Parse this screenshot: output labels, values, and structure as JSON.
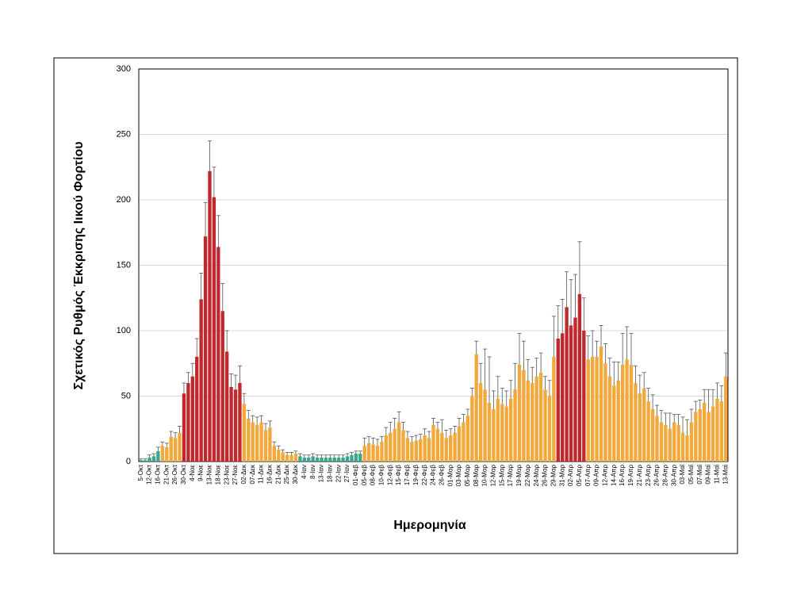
{
  "chart_data": {
    "type": "bar",
    "y_label": "Σχετικός Ρυθμός Έκκρισης Ιικού Φορτίου",
    "x_label": "Ημερομηνία",
    "ylim": [
      0,
      300
    ],
    "yticks": [
      0,
      50,
      100,
      150,
      200,
      250,
      300
    ],
    "grid": true,
    "categories": [
      "5-Οκτ",
      null,
      "12-Οκτ",
      null,
      "16-Οκτ",
      null,
      "21-Οκτ",
      null,
      "26-Οκτ",
      null,
      "30-Οκτ",
      null,
      "4-Νοε",
      null,
      "9-Νοε",
      null,
      "13-Νοε",
      null,
      "18-Νοε",
      null,
      "23-Νοε",
      null,
      "27-Νοε",
      null,
      "02-Δεκ",
      null,
      "07-Δεκ",
      null,
      "11-Δεκ",
      null,
      "16-Δεκ",
      null,
      "21-Δεκ",
      null,
      "25-Δεκ",
      null,
      "30-Δεκ",
      null,
      "4-Ιαν",
      null,
      "8-Ιαν",
      null,
      "13-Ιαν",
      null,
      "18-Ιαν",
      null,
      "22-Ιαν",
      null,
      "27-Ιαν",
      null,
      "01-Φεβ",
      null,
      "05-Φεβ",
      null,
      "08-Φεβ",
      null,
      "10-Φεβ",
      null,
      "12-Φεβ",
      null,
      "15-Φεβ",
      null,
      "17-Φεβ",
      null,
      "19-Φεβ",
      null,
      "22-Φεβ",
      null,
      "24-Φεβ",
      null,
      "26-Φεβ",
      null,
      "01-Μαρ",
      null,
      "03-Μαρ",
      null,
      "05-Μαρ",
      null,
      "08-Μαρ",
      null,
      "10-Μαρ",
      null,
      "12-Μαρ",
      null,
      "15-Μαρ",
      null,
      "17-Μαρ",
      null,
      "19-Μαρ",
      null,
      "22-Μαρ",
      null,
      "24-Μαρ",
      null,
      "26-Μαρ",
      null,
      "29-Μαρ",
      null,
      "31-Μαρ",
      null,
      "02-Απρ",
      null,
      "05-Απρ",
      null,
      "07-Απρ",
      null,
      "09-Απρ",
      null,
      "12-Απρ",
      null,
      "14-Απρ",
      null,
      "16-Απρ",
      null,
      "19-Απρ",
      null,
      "21-Απρ",
      null,
      "23-Απρ",
      null,
      "26-Απρ",
      null,
      "28-Απρ",
      null,
      "30-Απρ",
      null,
      "03-Μαϊ",
      null,
      "05-Μαϊ",
      null,
      "07-Μαϊ",
      null,
      "09-Μαϊ",
      null,
      "11-Μαϊ",
      null,
      "13-Μαϊ"
    ],
    "values": [
      1,
      1,
      3,
      4,
      8,
      12,
      11,
      19,
      18,
      22,
      52,
      60,
      65,
      80,
      124,
      172,
      222,
      202,
      164,
      115,
      84,
      57,
      55,
      60,
      44,
      33,
      30,
      28,
      30,
      24,
      26,
      12,
      9,
      7,
      5,
      5,
      6,
      4,
      3,
      3,
      4,
      3,
      3,
      3,
      3,
      3,
      3,
      3,
      4,
      5,
      6,
      6,
      12,
      14,
      13,
      12,
      15,
      20,
      22,
      25,
      30,
      24,
      18,
      15,
      16,
      17,
      20,
      18,
      28,
      25,
      22,
      18,
      20,
      22,
      27,
      30,
      35,
      50,
      82,
      60,
      55,
      45,
      40,
      48,
      44,
      42,
      48,
      55,
      74,
      70,
      62,
      60,
      65,
      68,
      55,
      50,
      80,
      94,
      98,
      118,
      104,
      110,
      128,
      100,
      78,
      80,
      80,
      88,
      75,
      65,
      58,
      62,
      74,
      78,
      74,
      60,
      52,
      56,
      46,
      40,
      35,
      30,
      28,
      25,
      30,
      28,
      22,
      20,
      30,
      38,
      40,
      45,
      38,
      42,
      48,
      46,
      65
    ],
    "errors": [
      1,
      1,
      2,
      2,
      3,
      3,
      3,
      4,
      4,
      5,
      8,
      8,
      10,
      14,
      20,
      26,
      23,
      23,
      24,
      21,
      16,
      10,
      11,
      13,
      8,
      6,
      5,
      6,
      5,
      5,
      5,
      3,
      3,
      2,
      2,
      2,
      2,
      2,
      2,
      2,
      2,
      2,
      2,
      2,
      2,
      2,
      2,
      2,
      2,
      2,
      2,
      2,
      6,
      5,
      5,
      5,
      4,
      6,
      8,
      8,
      8,
      6,
      5,
      4,
      4,
      4,
      5,
      5,
      5,
      5,
      10,
      6,
      5,
      5,
      6,
      6,
      5,
      6,
      10,
      15,
      31,
      35,
      14,
      17,
      12,
      12,
      14,
      20,
      24,
      22,
      16,
      12,
      14,
      15,
      10,
      12,
      31,
      25,
      26,
      27,
      35,
      33,
      40,
      25,
      18,
      20,
      12,
      16,
      15,
      14,
      18,
      14,
      24,
      25,
      24,
      13,
      14,
      12,
      10,
      11,
      8,
      9,
      9,
      12,
      6,
      8,
      12,
      12,
      10,
      8,
      7,
      10,
      17,
      13,
      12,
      12,
      18
    ],
    "colors": [
      "#3aa68c",
      "#3aa68c",
      "#3aa68c",
      "#3aa68c",
      "#3aa68c",
      "#f2a93b",
      "#f2a93b",
      "#f2a93b",
      "#f2a93b",
      "#f2a93b",
      "#c1272d",
      "#c1272d",
      "#c1272d",
      "#c1272d",
      "#c1272d",
      "#c1272d",
      "#c1272d",
      "#c1272d",
      "#c1272d",
      "#c1272d",
      "#c1272d",
      "#c1272d",
      "#c1272d",
      "#c1272d",
      "#f2a93b",
      "#f2a93b",
      "#f2a93b",
      "#f2a93b",
      "#f2a93b",
      "#f2a93b",
      "#f2a93b",
      "#f2a93b",
      "#f2a93b",
      "#f2a93b",
      "#f2a93b",
      "#f2a93b",
      "#f2a93b",
      "#3aa68c",
      "#3aa68c",
      "#3aa68c",
      "#3aa68c",
      "#3aa68c",
      "#3aa68c",
      "#3aa68c",
      "#3aa68c",
      "#3aa68c",
      "#3aa68c",
      "#3aa68c",
      "#3aa68c",
      "#3aa68c",
      "#3aa68c",
      "#3aa68c",
      "#f2a93b",
      "#f2a93b",
      "#f2a93b",
      "#f2a93b",
      "#f2a93b",
      "#f2a93b",
      "#f2a93b",
      "#f2a93b",
      "#f2a93b",
      "#f2a93b",
      "#f2a93b",
      "#f2a93b",
      "#f2a93b",
      "#f2a93b",
      "#f2a93b",
      "#f2a93b",
      "#f2a93b",
      "#f2a93b",
      "#f2a93b",
      "#f2a93b",
      "#f2a93b",
      "#f2a93b",
      "#f2a93b",
      "#f2a93b",
      "#f2a93b",
      "#f2a93b",
      "#f2a93b",
      "#f2a93b",
      "#f2a93b",
      "#f2a93b",
      "#f2a93b",
      "#f2a93b",
      "#f2a93b",
      "#f2a93b",
      "#f2a93b",
      "#f2a93b",
      "#f2a93b",
      "#f2a93b",
      "#f2a93b",
      "#f2a93b",
      "#f2a93b",
      "#f2a93b",
      "#f2a93b",
      "#f2a93b",
      "#f2a93b",
      "#c1272d",
      "#c1272d",
      "#c1272d",
      "#c1272d",
      "#c1272d",
      "#c1272d",
      "#c1272d",
      "#f2a93b",
      "#f2a93b",
      "#f2a93b",
      "#f2a93b",
      "#f2a93b",
      "#f2a93b",
      "#f2a93b",
      "#f2a93b",
      "#f2a93b",
      "#f2a93b",
      "#f2a93b",
      "#f2a93b",
      "#f2a93b",
      "#f2a93b",
      "#f2a93b",
      "#f2a93b",
      "#f2a93b",
      "#f2a93b",
      "#f2a93b",
      "#f2a93b",
      "#f2a93b",
      "#f2a93b",
      "#f2a93b",
      "#f2a93b",
      "#f2a93b",
      "#f2a93b",
      "#f2a93b",
      "#f2a93b",
      "#f2a93b",
      "#f2a93b",
      "#f2a93b",
      "#f2a93b",
      "#f2a93b"
    ]
  }
}
